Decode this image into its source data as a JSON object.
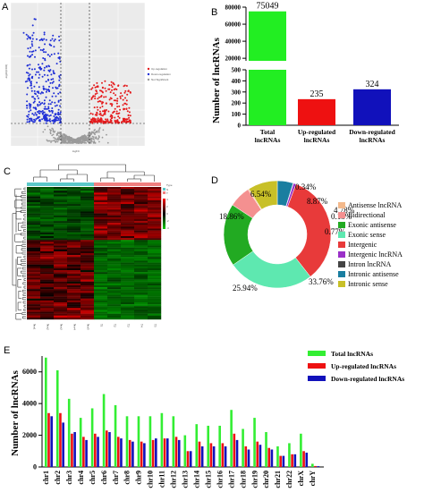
{
  "panels": {
    "A": {
      "label": "A",
      "ylabel": "-log10(FDR)",
      "xlabel": "logFC",
      "legend": [
        "Up-regulation",
        "Down-regulation",
        "Not Significant"
      ],
      "colors": {
        "up": "#e41a1c",
        "down": "#1f2fd6",
        "ns": "#9a9a9a",
        "bg": "#ebebeb"
      }
    },
    "C": {
      "label": "C",
      "column_labels": [
        "Nor1",
        "Nor2",
        "Nor3",
        "Nor4",
        "Nor5",
        "T1",
        "T2",
        "T3",
        "T4",
        "T5"
      ],
      "legend_title": "Type",
      "legend_items": [
        "N",
        "T"
      ],
      "scale_ticks": [
        "4",
        "2",
        "0",
        "-2",
        "-4"
      ]
    },
    "D": {
      "label": "D"
    },
    "E": {
      "label": "E"
    }
  },
  "chart_data": [
    {
      "panel": "B",
      "type": "bar",
      "ylabel": "Number of lncRNAs",
      "categories": [
        "Total\nlncRNAs",
        "Up-regulated\nlncRNAs",
        "Down-regulated\nlncRNAs"
      ],
      "values": [
        75049,
        235,
        324
      ],
      "value_labels": [
        "75049",
        "235",
        "324"
      ],
      "colors": [
        "#22ee22",
        "#ee1111",
        "#1111bb"
      ],
      "axis_break": true,
      "upper_ticks": [
        "80000",
        "60000",
        "40000",
        "20000"
      ],
      "lower_ticks": [
        "500",
        "400",
        "300",
        "200",
        "100",
        "0"
      ],
      "upper_range": [
        17000,
        80000
      ],
      "lower_range": [
        0,
        500
      ]
    },
    {
      "panel": "D",
      "type": "pie",
      "donut": true,
      "labels": [
        "Antisense lncRNA",
        "Bidirectional",
        "Exonic antisense",
        "Exonic sense",
        "Intergenic",
        "Intergenic lncRNA",
        "Intron lncRNA",
        "Intronic antisense",
        "Intronic sense"
      ],
      "values": [
        0.34,
        6.54,
        18.86,
        25.94,
        33.76,
        0.77,
        0.13,
        4.78,
        8.87
      ],
      "value_labels": [
        "0.34%",
        "6.54%",
        "18.86%",
        "25.94%",
        "33.76%",
        "0.77%",
        "0.13%",
        "4.78%",
        "8.87%"
      ],
      "colors": [
        "#f3b98c",
        "#f49090",
        "#22aa22",
        "#5ee8b0",
        "#e83a3a",
        "#9a30c8",
        "#444444",
        "#1a7ea0",
        "#c8c028"
      ],
      "legend_position": "right"
    },
    {
      "panel": "E",
      "type": "bar",
      "ylabel": "Number of lncRNAs",
      "categories": [
        "chr1",
        "chr2",
        "chr3",
        "chr4",
        "chr5",
        "chr6",
        "chr7",
        "chr8",
        "chr9",
        "chr10",
        "chr11",
        "chr12",
        "chr13",
        "chr14",
        "chr15",
        "chr16",
        "chr17",
        "chr18",
        "chr19",
        "chr20",
        "chr21",
        "chr22",
        "chrX",
        "chrY"
      ],
      "yticks": [
        "0",
        "2000",
        "4000",
        "6000"
      ],
      "ylim": [
        0,
        7000
      ],
      "legend_position": "top-right",
      "series": [
        {
          "name": "Total lncRNAs",
          "color": "#33ee33",
          "values": [
            6900,
            6100,
            4300,
            3100,
            3700,
            4600,
            3900,
            3200,
            3200,
            3200,
            3400,
            3200,
            2000,
            2700,
            2600,
            2600,
            3600,
            2400,
            3100,
            2200,
            1300,
            1500,
            2100,
            200
          ]
        },
        {
          "name": "Up-regulated lncRNAs",
          "color": "#ee1111",
          "values": [
            3400,
            3400,
            2100,
            1900,
            2100,
            2300,
            1900,
            1700,
            1600,
            1700,
            1800,
            1900,
            1000,
            1600,
            1500,
            1500,
            2100,
            1300,
            1600,
            1200,
            700,
            800,
            1000,
            60
          ]
        },
        {
          "name": "Down-regulated lncRNAs",
          "color": "#1111bb",
          "values": [
            3200,
            2800,
            2200,
            1700,
            1900,
            2200,
            1800,
            1600,
            1500,
            1800,
            1800,
            1700,
            1000,
            1300,
            1300,
            1300,
            1700,
            1100,
            1400,
            1100,
            700,
            800,
            900,
            50
          ]
        }
      ]
    }
  ]
}
